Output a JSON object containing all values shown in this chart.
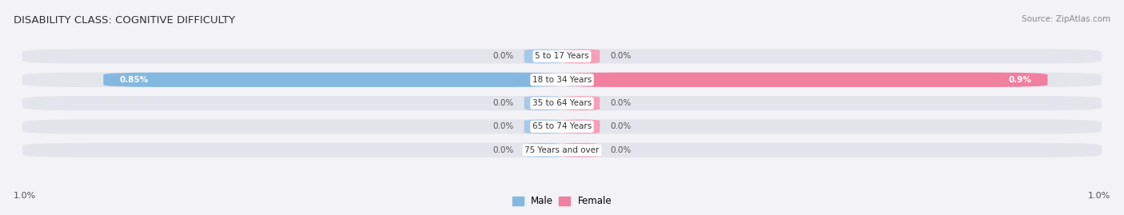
{
  "title": "DISABILITY CLASS: COGNITIVE DIFFICULTY",
  "source_text": "Source: ZipAtlas.com",
  "categories": [
    "5 to 17 Years",
    "18 to 34 Years",
    "35 to 64 Years",
    "65 to 74 Years",
    "75 Years and over"
  ],
  "male_values": [
    0.0,
    0.85,
    0.0,
    0.0,
    0.0
  ],
  "female_values": [
    0.0,
    0.9,
    0.0,
    0.0,
    0.0
  ],
  "male_color": "#85b8e0",
  "female_color": "#f07fa0",
  "male_color_small": "#a8c8e8",
  "female_color_small": "#f4a0b8",
  "bar_bg_color": "#e4e4ec",
  "row_bg_color": "#f0f0f5",
  "bar_height": 0.62,
  "small_bar_width": 0.07,
  "x_max": 1.0,
  "x_min_label": "1.0%",
  "x_max_label": "1.0%",
  "legend_male": "Male",
  "legend_female": "Female",
  "title_fontsize": 9.5,
  "label_fontsize": 7.5,
  "category_fontsize": 7.5,
  "axis_label_fontsize": 8,
  "background_color": "#f2f2f7"
}
